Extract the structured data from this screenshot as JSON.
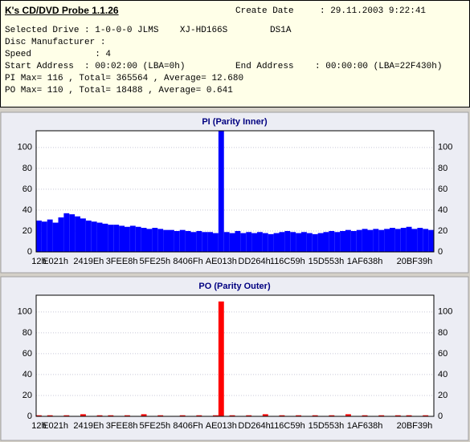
{
  "header": {
    "title": "K's CD/DVD Probe 1.1.26",
    "create_date_label": "Create Date",
    "create_date": ": 29.11.2003 9:22:41",
    "lines": [
      "Selected Drive : 1-0-0-0 JLMS    XJ-HD166S        DS1A",
      "Disc Manufacturer :",
      "Speed            : 4"
    ],
    "start_address": "Start Address  : 00:02:00 (LBA=0h)",
    "end_address": "End Address    : 00:00:00 (LBA=22F430h)",
    "pi_summary": "PI Max= 116 , Total= 365564 , Average= 12.680",
    "po_summary": "PO Max= 110 , Total= 18488 , Average= 0.641"
  },
  "chart_data": [
    {
      "type": "bar",
      "title": "PI (Parity Inner)",
      "color": "#0000ff",
      "grid": true,
      "categories": [
        "12h",
        null,
        null,
        "E021h",
        null,
        null,
        null,
        null,
        null,
        "2419Eh",
        null,
        null,
        null,
        null,
        null,
        "3FEE8h",
        null,
        null,
        null,
        null,
        null,
        "5FE25h",
        null,
        null,
        null,
        null,
        null,
        "8406Fh",
        null,
        null,
        null,
        null,
        null,
        "AE013h",
        null,
        null,
        null,
        null,
        null,
        "DD264h",
        null,
        null,
        null,
        null,
        null,
        "116C59h",
        null,
        null,
        null,
        null,
        null,
        null,
        "15D553h",
        null,
        null,
        null,
        null,
        null,
        null,
        "1AF638h",
        null,
        null,
        null,
        null,
        null,
        null,
        null,
        null,
        "20BF39h",
        null,
        null,
        null
      ],
      "values": [
        30,
        29,
        31,
        28,
        33,
        37,
        36,
        34,
        32,
        30,
        29,
        28,
        27,
        26,
        26,
        25,
        24,
        25,
        24,
        23,
        22,
        23,
        22,
        21,
        21,
        20,
        21,
        20,
        19,
        20,
        19,
        19,
        18,
        116,
        19,
        18,
        20,
        18,
        19,
        18,
        19,
        18,
        17,
        18,
        19,
        20,
        19,
        18,
        19,
        18,
        17,
        18,
        19,
        20,
        19,
        20,
        21,
        20,
        21,
        22,
        21,
        22,
        21,
        22,
        23,
        22,
        23,
        24,
        22,
        23,
        22,
        21
      ],
      "ylim": [
        0,
        116
      ],
      "yticks": [
        0,
        20,
        40,
        60,
        80,
        100
      ]
    },
    {
      "type": "bar",
      "title": "PO (Parity Outer)",
      "color": "#ff0000",
      "grid": true,
      "categories": [
        "12h",
        null,
        null,
        "E021h",
        null,
        null,
        null,
        null,
        null,
        "2419Eh",
        null,
        null,
        null,
        null,
        null,
        "3FEE8h",
        null,
        null,
        null,
        null,
        null,
        "5FE25h",
        null,
        null,
        null,
        null,
        null,
        "8406Fh",
        null,
        null,
        null,
        null,
        null,
        "AE013h",
        null,
        null,
        null,
        null,
        null,
        "DD264h",
        null,
        null,
        null,
        null,
        null,
        "116C59h",
        null,
        null,
        null,
        null,
        null,
        null,
        "15D553h",
        null,
        null,
        null,
        null,
        null,
        null,
        "1AF638h",
        null,
        null,
        null,
        null,
        null,
        null,
        null,
        null,
        "20BF39h",
        null,
        null,
        null
      ],
      "values": [
        1,
        0,
        1,
        0,
        0,
        1,
        0,
        0,
        2,
        0,
        0,
        1,
        0,
        1,
        0,
        0,
        1,
        0,
        0,
        2,
        0,
        0,
        1,
        0,
        0,
        0,
        1,
        0,
        0,
        1,
        0,
        0,
        1,
        110,
        0,
        1,
        0,
        0,
        1,
        0,
        0,
        2,
        0,
        0,
        1,
        0,
        0,
        1,
        0,
        0,
        1,
        0,
        0,
        1,
        0,
        0,
        2,
        0,
        0,
        1,
        0,
        0,
        1,
        0,
        0,
        1,
        0,
        1,
        0,
        0,
        1,
        0
      ],
      "ylim": [
        0,
        116
      ],
      "yticks": [
        0,
        20,
        40,
        60,
        80,
        100
      ]
    }
  ]
}
